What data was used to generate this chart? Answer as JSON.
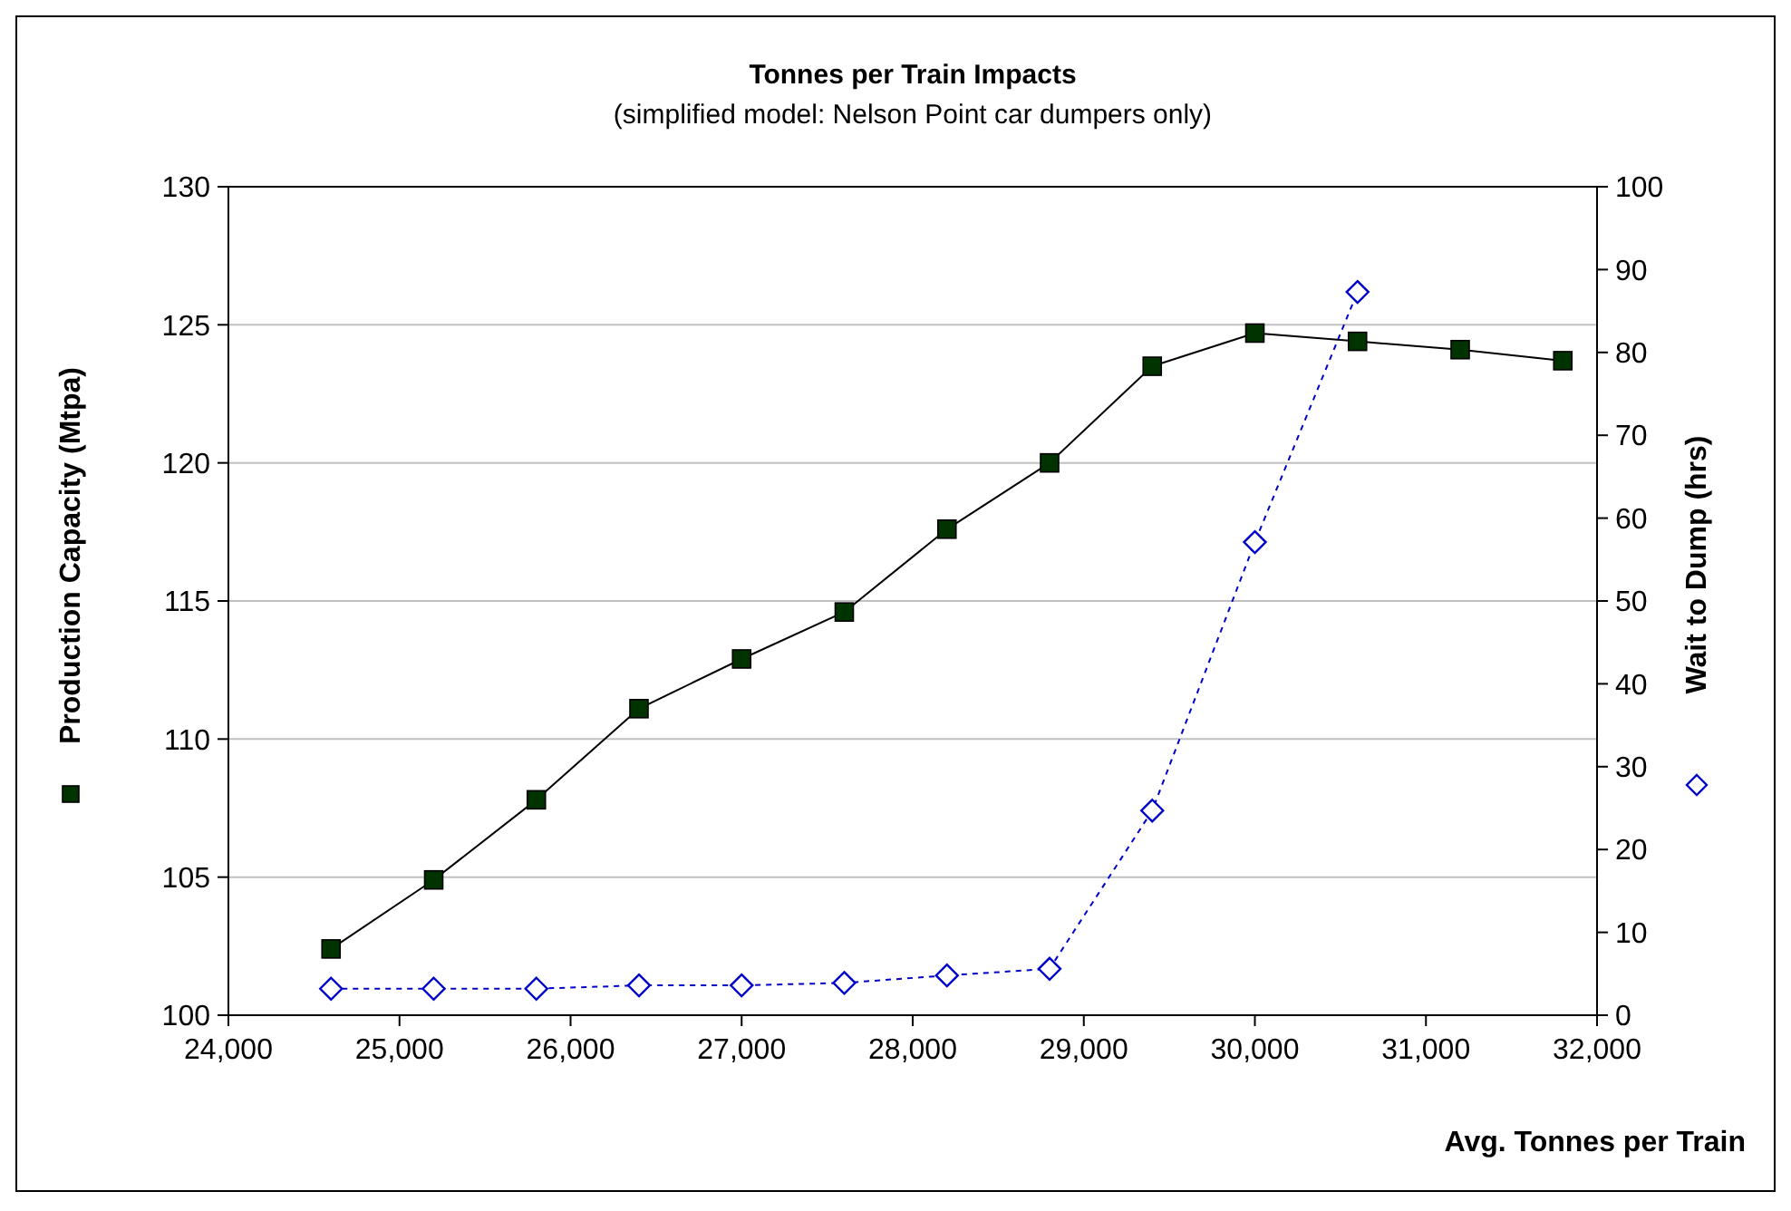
{
  "chart_data": {
    "type": "line",
    "title": "Tonnes per Train Impacts",
    "subtitle": "(simplified model: Nelson Point car dumpers only)",
    "xlabel": "Avg. Tonnes per Train",
    "ylabel": "Production Capacity (Mtpa)",
    "y2label": "Wait to Dump (hrs)",
    "x": [
      24600,
      25200,
      25800,
      26400,
      27000,
      27600,
      28200,
      28800,
      29400,
      30000,
      30600,
      31200,
      31800
    ],
    "series": [
      {
        "color": "#003300",
        "marker": "square",
        "line_style": "solid",
        "values": [
          102.4,
          104.9,
          107.8,
          111.1,
          112.9,
          114.6,
          117.6,
          120.0,
          123.5,
          124.7,
          124.4,
          124.1,
          123.7
        ]
      },
      {
        "color": "#0000cc",
        "marker": "diamond",
        "line_style": "dashed",
        "axis": "y2",
        "values": [
          3.2,
          3.2,
          3.2,
          3.6,
          3.6,
          3.9,
          4.8,
          5.6,
          24.7,
          57.1,
          87.3,
          null,
          null
        ]
      }
    ],
    "xlim": [
      24000,
      32000
    ],
    "xticks": [
      {
        "value": 24000,
        "label": "24,000"
      },
      {
        "value": 25000,
        "label": "25,000"
      },
      {
        "value": 26000,
        "label": "26,000"
      },
      {
        "value": 27000,
        "label": "27,000"
      },
      {
        "value": 28000,
        "label": "28,000"
      },
      {
        "value": 29000,
        "label": "29,000"
      },
      {
        "value": 30000,
        "label": "30,000"
      },
      {
        "value": 31000,
        "label": "31,000"
      },
      {
        "value": 32000,
        "label": "32,000"
      }
    ],
    "ylim": [
      100,
      130
    ],
    "yticks": [
      100,
      105,
      110,
      115,
      120,
      125,
      130
    ],
    "y2lim": [
      0,
      100
    ],
    "y2ticks": [
      0,
      10,
      20,
      30,
      40,
      50,
      60,
      70,
      80,
      90,
      100
    ],
    "grid": "y"
  }
}
